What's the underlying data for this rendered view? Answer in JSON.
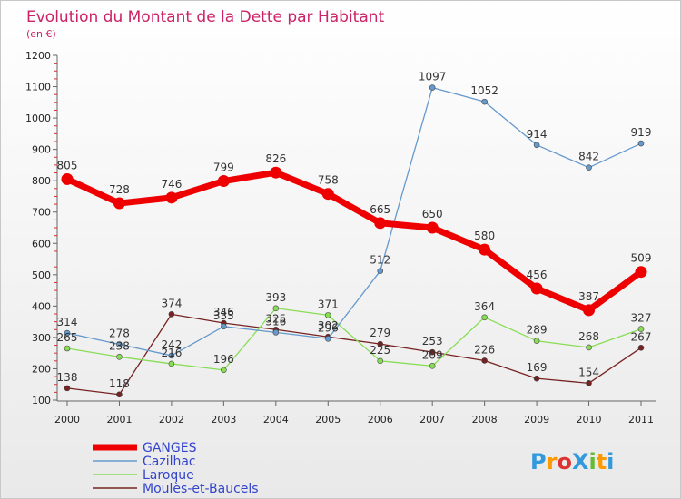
{
  "chart_data": {
    "type": "line",
    "title": "Evolution du Montant de la Dette par Habitant",
    "subtitle": "(en €)",
    "xlabel": "",
    "ylabel": "",
    "ylim": [
      100,
      1200
    ],
    "yticks": [
      100,
      200,
      300,
      400,
      500,
      600,
      700,
      800,
      900,
      1000,
      1100,
      1200
    ],
    "categories": [
      "2000",
      "2001",
      "2002",
      "2003",
      "2004",
      "2005",
      "2006",
      "2007",
      "2008",
      "2009",
      "2010",
      "2011"
    ],
    "grid": false,
    "legend_position": "bottom-left",
    "series": [
      {
        "name": "GANGES",
        "color": "#ee0000",
        "values": [
          805,
          728,
          746,
          799,
          826,
          758,
          665,
          650,
          580,
          456,
          387,
          509
        ]
      },
      {
        "name": "Cazilhac",
        "color": "#6699cc",
        "values": [
          314,
          278,
          242,
          335,
          316,
          296,
          512,
          1097,
          1052,
          914,
          842,
          919
        ]
      },
      {
        "name": "Laroque",
        "color": "#88dd55",
        "values": [
          265,
          238,
          216,
          196,
          393,
          371,
          225,
          209,
          364,
          289,
          268,
          327
        ]
      },
      {
        "name": "Moulès-et-Baucels",
        "color": "#772222",
        "values": [
          138,
          118,
          374,
          346,
          325,
          302,
          279,
          253,
          226,
          169,
          154,
          267
        ]
      }
    ]
  },
  "logo": {
    "text": "ProXiti"
  }
}
